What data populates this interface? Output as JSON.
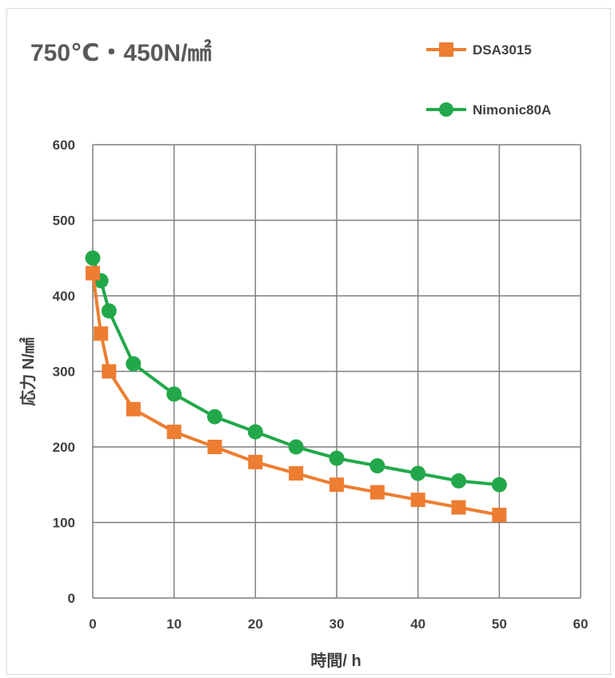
{
  "chart_data": {
    "type": "line",
    "title": "750℃・450N/㎟",
    "xlabel": "時間/ h",
    "ylabel": "応力 N/㎟",
    "xlim": [
      0,
      60
    ],
    "ylim": [
      0,
      600
    ],
    "x_ticks": [
      "0",
      "10",
      "20",
      "30",
      "40",
      "50",
      "60"
    ],
    "y_ticks": [
      "0",
      "100",
      "200",
      "300",
      "400",
      "500",
      "600"
    ],
    "grid": true,
    "legend_position": "top-right",
    "series": [
      {
        "name": "DSA3015",
        "color": "#ed7d31",
        "marker": "square",
        "x": [
          0,
          1,
          2,
          5,
          10,
          15,
          20,
          25,
          30,
          35,
          40,
          45,
          50
        ],
        "y": [
          430,
          350,
          300,
          250,
          220,
          200,
          180,
          165,
          150,
          140,
          130,
          120,
          110
        ]
      },
      {
        "name": "Nimonic80A",
        "color": "#22a84a",
        "marker": "circle",
        "x": [
          0,
          1,
          2,
          5,
          10,
          15,
          20,
          25,
          30,
          35,
          40,
          45,
          50
        ],
        "y": [
          450,
          420,
          380,
          310,
          270,
          240,
          220,
          200,
          185,
          175,
          165,
          155,
          150
        ]
      }
    ]
  }
}
